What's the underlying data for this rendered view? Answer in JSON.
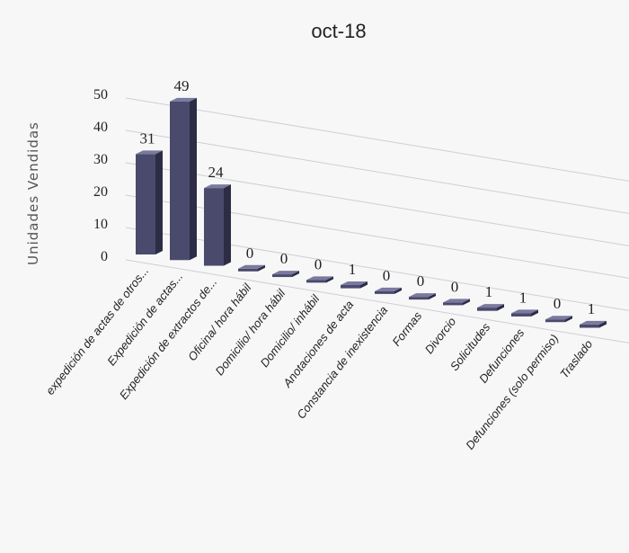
{
  "chart_data": {
    "type": "bar",
    "title": "oct-18",
    "ylabel": "Unidades Vendidas",
    "xlabel": "",
    "ylim": [
      0,
      50
    ],
    "yticks": [
      "0",
      "10",
      "20",
      "30",
      "40",
      "50"
    ],
    "grid": true,
    "categories": [
      "expedición de actas de otros...",
      "Expedición de actas...",
      "Expedición de extractos de...",
      "Oficina/ hora hábil",
      "Domicilio/ hora hábil",
      "Domicilio/ inhábil",
      "Anotaciones de acta",
      "Constancia de inexistencia",
      "Formas",
      "Divorcio",
      "Solicitudes",
      "Defunciones",
      "Defunciones (solo permiso)",
      "Traslado"
    ],
    "values": [
      31,
      49,
      24,
      0,
      0,
      0,
      1,
      0,
      0,
      0,
      1,
      1,
      0,
      1
    ],
    "colors": {
      "bar_front": "#4a4a6c",
      "bar_side": "#2c2c44",
      "bar_top": "#7a7aa0"
    }
  }
}
